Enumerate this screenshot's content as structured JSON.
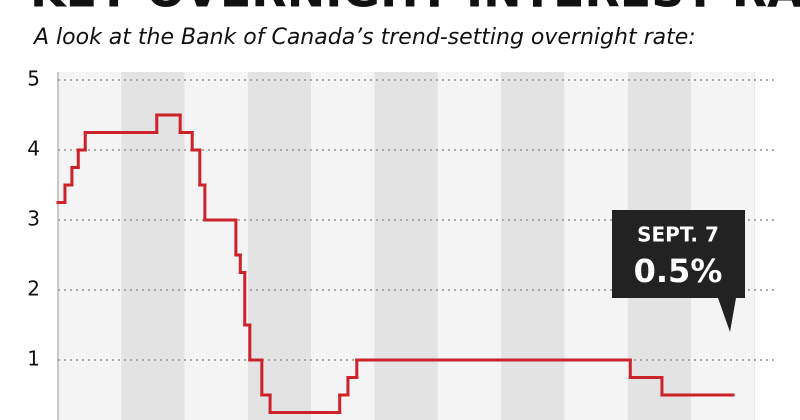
{
  "chart_data": {
    "type": "step",
    "title": "KEY OVERNIGHT INTEREST RATE",
    "subtitle": "A look at the Bank of Canada’s trend-setting overnight rate:",
    "x": [
      2006.0,
      2006.11,
      2006.22,
      2006.32,
      2006.43,
      2007.56,
      2007.93,
      2008.12,
      2008.24,
      2008.32,
      2008.81,
      2008.88,
      2008.95,
      2009.03,
      2009.22,
      2009.35,
      2010.45,
      2010.58,
      2010.72,
      2015.04,
      2015.54,
      2016.66
    ],
    "series": [
      {
        "color": "#cc2229",
        "values": [
          3.25,
          3.5,
          3.75,
          4.0,
          4.25,
          4.5,
          4.25,
          4.0,
          3.5,
          3.0,
          2.5,
          2.25,
          1.5,
          1.0,
          0.5,
          0.25,
          0.5,
          0.75,
          1.0,
          0.75,
          0.5,
          0.5
        ]
      }
    ],
    "xlim": [
      2006,
      2017.01
    ],
    "ylim": [
      0,
      5
    ],
    "yticks": [
      1,
      2,
      3,
      4,
      5
    ],
    "grid": true,
    "annotation": [
      "SEPT. 7",
      "0.5%"
    ]
  }
}
